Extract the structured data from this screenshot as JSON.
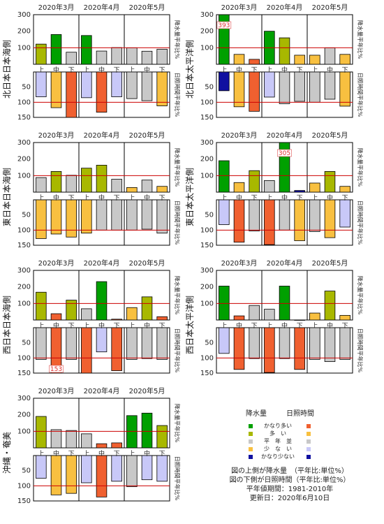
{
  "legend": {
    "precip_header": "降水量",
    "sun_header": "日照時間",
    "items": [
      {
        "label": "かなり多い",
        "precip_color": "#00a000",
        "sun_color": "#f06030"
      },
      {
        "label": "多　い",
        "precip_color": "#a8b800",
        "sun_color": "#f8c040"
      },
      {
        "label": "平　年　並",
        "precip_color": "#c8c8c8",
        "sun_color": "#c8c8c8"
      },
      {
        "label": "少　な　い",
        "precip_color": "#f8c040",
        "sun_color": "#c8c8f8"
      },
      {
        "label": "かなり少ない",
        "precip_color": "#1010a0",
        "sun_color": "#1010a0"
      }
    ]
  },
  "notes": {
    "line1": "図の上側が降水量　（平年比:単位%）",
    "line2": "図の下側が日照時間（平年比:単位%）",
    "line3": "平年値期間：1981-2010年",
    "line4": "更新日：2020年6月10日"
  },
  "chart_data": [
    {
      "type": "bar",
      "region": "北日本日本海側",
      "months": [
        "2020年3月",
        "2020年4月",
        "2020年5月"
      ],
      "categories": [
        "上",
        "中",
        "下",
        "上",
        "中",
        "下",
        "上",
        "中",
        "下"
      ],
      "precip_axis_label": "降水量平年比%",
      "sun_axis_label": "日照時間平年比%",
      "precip_ylim": [
        0,
        300
      ],
      "precip_ticks": [
        100,
        200,
        300
      ],
      "sun_ylim": [
        0,
        150
      ],
      "sun_ticks": [
        50,
        100,
        150
      ],
      "precip_values": [
        122,
        180,
        73,
        174,
        80,
        101,
        100,
        79,
        91
      ],
      "precip_colors": [
        "#a8b800",
        "#00a000",
        "#c8c8c8",
        "#00a000",
        "#c8c8c8",
        "#c8c8c8",
        "#c8c8c8",
        "#c8c8c8",
        "#c8c8c8"
      ],
      "sun_values": [
        82,
        118,
        150,
        85,
        133,
        82,
        88,
        95,
        112
      ],
      "sun_colors": [
        "#c8c8f8",
        "#f8c040",
        "#f06030",
        "#c8c8f8",
        "#f06030",
        "#c8c8f8",
        "#c8c8c8",
        "#c8c8c8",
        "#f8c040"
      ],
      "precip_labels": [
        null,
        null,
        null,
        null,
        null,
        null,
        null,
        null,
        null
      ],
      "sun_labels": [
        null,
        null,
        null,
        null,
        null,
        null,
        null,
        null,
        null
      ]
    },
    {
      "type": "bar",
      "region": "北日本太平洋側",
      "months": [
        "2020年3月",
        "2020年4月",
        "2020年5月"
      ],
      "categories": [
        "上",
        "中",
        "下",
        "上",
        "中",
        "下",
        "上",
        "中",
        "下"
      ],
      "precip_axis_label": "降水量平年比%",
      "sun_axis_label": "日照時間平年比%",
      "precip_ylim": [
        0,
        300
      ],
      "precip_ticks": [
        100,
        200,
        300
      ],
      "sun_ylim": [
        0,
        150
      ],
      "sun_ticks": [
        50,
        100,
        150
      ],
      "precip_values": [
        393,
        60,
        30,
        200,
        160,
        55,
        55,
        100,
        60
      ],
      "precip_colors": [
        "#00a000",
        "#f8c040",
        "#f06030",
        "#00a000",
        "#a8b800",
        "#f8c040",
        "#f8c040",
        "#c8c8c8",
        "#f8c040"
      ],
      "sun_values": [
        62,
        115,
        130,
        83,
        105,
        97,
        100,
        90,
        113
      ],
      "sun_colors": [
        "#1010a0",
        "#f8c040",
        "#f06030",
        "#c8c8f8",
        "#c8c8c8",
        "#c8c8c8",
        "#c8c8c8",
        "#c8c8c8",
        "#f8c040"
      ],
      "precip_labels": [
        "393",
        null,
        null,
        null,
        null,
        null,
        null,
        null,
        null
      ],
      "sun_labels": [
        null,
        null,
        null,
        null,
        null,
        null,
        null,
        null,
        null
      ]
    },
    {
      "type": "bar",
      "region": "東日本日本海側",
      "months": [
        "2020年3月",
        "2020年4月",
        "2020年5月"
      ],
      "categories": [
        "上",
        "中",
        "下",
        "上",
        "中",
        "下",
        "上",
        "中",
        "下"
      ],
      "precip_axis_label": "降水量平年比%",
      "sun_axis_label": "日照時間平年比%",
      "precip_ylim": [
        0,
        300
      ],
      "precip_ticks": [
        100,
        200,
        300
      ],
      "sun_ylim": [
        0,
        150
      ],
      "sun_ticks": [
        50,
        100,
        150
      ],
      "precip_values": [
        88,
        125,
        102,
        145,
        163,
        78,
        28,
        73,
        35
      ],
      "precip_colors": [
        "#c8c8c8",
        "#a8b800",
        "#c8c8c8",
        "#a8b800",
        "#a8b800",
        "#c8c8c8",
        "#f8c040",
        "#c8c8c8",
        "#f8c040"
      ],
      "sun_values": [
        128,
        113,
        123,
        110,
        100,
        100,
        100,
        97,
        110
      ],
      "sun_colors": [
        "#f8c040",
        "#f8c040",
        "#f8c040",
        "#f8c040",
        "#c8c8c8",
        "#c8c8c8",
        "#c8c8c8",
        "#c8c8c8",
        "#c8c8c8"
      ],
      "precip_labels": [
        null,
        null,
        null,
        null,
        null,
        null,
        null,
        null,
        null
      ],
      "sun_labels": [
        null,
        null,
        null,
        null,
        null,
        null,
        null,
        null,
        null
      ]
    },
    {
      "type": "bar",
      "region": "東日本太平洋側",
      "months": [
        "2020年3月",
        "2020年4月",
        "2020年5月"
      ],
      "categories": [
        "上",
        "中",
        "下",
        "上",
        "中",
        "下",
        "上",
        "中",
        "下"
      ],
      "precip_axis_label": "降水量平年比%",
      "sun_axis_label": "日照時間平年比%",
      "precip_ylim": [
        0,
        300
      ],
      "precip_ticks": [
        100,
        200,
        300
      ],
      "sun_ylim": [
        0,
        150
      ],
      "sun_ticks": [
        50,
        100,
        150
      ],
      "precip_values": [
        190,
        58,
        130,
        70,
        305,
        10,
        55,
        125,
        35
      ],
      "precip_colors": [
        "#00a000",
        "#f8c040",
        "#a8b800",
        "#c8c8c8",
        "#00a000",
        "#1010a0",
        "#f8c040",
        "#a8b800",
        "#f8c040"
      ],
      "sun_values": [
        82,
        140,
        103,
        148,
        100,
        135,
        105,
        125,
        90
      ],
      "sun_colors": [
        "#c8c8f8",
        "#f06030",
        "#c8c8c8",
        "#f06030",
        "#c8c8c8",
        "#f8c040",
        "#c8c8c8",
        "#f8c040",
        "#c8c8f8"
      ],
      "precip_labels": [
        null,
        null,
        null,
        null,
        "305",
        null,
        null,
        null,
        null
      ],
      "sun_labels": [
        null,
        null,
        null,
        null,
        null,
        null,
        null,
        null,
        null
      ]
    },
    {
      "type": "bar",
      "region": "西日本日本海側",
      "months": [
        "2020年3月",
        "2020年4月",
        "2020年5月"
      ],
      "categories": [
        "上",
        "中",
        "下",
        "上",
        "中",
        "下",
        "上",
        "中",
        "下"
      ],
      "precip_axis_label": "降水量平年比%",
      "sun_axis_label": "日照時間平年比%",
      "precip_ylim": [
        0,
        300
      ],
      "precip_ticks": [
        100,
        200,
        300
      ],
      "sun_ylim": [
        0,
        150
      ],
      "sun_ticks": [
        50,
        100,
        150
      ],
      "precip_values": [
        168,
        38,
        120,
        68,
        232,
        5,
        75,
        140,
        20
      ],
      "precip_colors": [
        "#a8b800",
        "#f06030",
        "#a8b800",
        "#c8c8c8",
        "#00a000",
        "#f06030",
        "#f8c040",
        "#a8b800",
        "#f06030"
      ],
      "sun_values": [
        105,
        153,
        105,
        150,
        80,
        142,
        105,
        102,
        105
      ],
      "sun_colors": [
        "#c8c8c8",
        "#f06030",
        "#c8c8c8",
        "#f06030",
        "#c8c8f8",
        "#f06030",
        "#c8c8c8",
        "#c8c8c8",
        "#c8c8c8"
      ],
      "precip_labels": [
        null,
        null,
        null,
        null,
        null,
        null,
        null,
        null,
        null
      ],
      "sun_labels": [
        null,
        "153",
        null,
        null,
        null,
        null,
        null,
        null,
        null
      ]
    },
    {
      "type": "bar",
      "region": "西日本太平洋側",
      "months": [
        "2020年3月",
        "2020年4月",
        "2020年5月"
      ],
      "categories": [
        "上",
        "中",
        "下",
        "上",
        "中",
        "下",
        "上",
        "中",
        "下"
      ],
      "precip_axis_label": "降水量平年比%",
      "sun_axis_label": "日照時間平年比%",
      "precip_ylim": [
        0,
        300
      ],
      "precip_ticks": [
        100,
        200,
        300
      ],
      "sun_ylim": [
        0,
        150
      ],
      "sun_ticks": [
        50,
        100,
        150
      ],
      "precip_values": [
        205,
        25,
        88,
        65,
        205,
        0,
        42,
        175,
        28
      ],
      "precip_colors": [
        "#00a000",
        "#f06030",
        "#c8c8c8",
        "#c8c8c8",
        "#00a000",
        "#1010a0",
        "#f8c040",
        "#a8b800",
        "#f8c040"
      ],
      "sun_values": [
        85,
        138,
        102,
        148,
        102,
        138,
        105,
        112,
        105
      ],
      "sun_colors": [
        "#c8c8f8",
        "#f06030",
        "#c8c8c8",
        "#f06030",
        "#c8c8c8",
        "#f06030",
        "#c8c8c8",
        "#c8c8c8",
        "#c8c8c8"
      ],
      "precip_labels": [
        null,
        null,
        null,
        null,
        null,
        null,
        null,
        null,
        null
      ],
      "sun_labels": [
        null,
        null,
        null,
        null,
        null,
        null,
        null,
        null,
        null
      ]
    },
    {
      "type": "bar",
      "region": "沖縄・奄美",
      "months": [
        "2020年3月",
        "2020年4月",
        "2020年5月"
      ],
      "categories": [
        "上",
        "中",
        "下",
        "上",
        "中",
        "下",
        "上",
        "中",
        "下"
      ],
      "precip_axis_label": "降水量平年比%",
      "sun_axis_label": "日照時間平年比%",
      "precip_ylim": [
        0,
        300
      ],
      "precip_ticks": [
        100,
        200,
        300
      ],
      "sun_ylim": [
        0,
        150
      ],
      "sun_ticks": [
        50,
        100,
        150
      ],
      "precip_values": [
        190,
        110,
        105,
        85,
        25,
        30,
        195,
        210,
        135
      ],
      "precip_colors": [
        "#a8b800",
        "#c8c8c8",
        "#c8c8c8",
        "#c8c8c8",
        "#f06030",
        "#f06030",
        "#00a000",
        "#00a000",
        "#a8b800"
      ],
      "sun_values": [
        75,
        130,
        125,
        90,
        137,
        85,
        103,
        80,
        85
      ],
      "sun_colors": [
        "#c8c8f8",
        "#f8c040",
        "#f8c040",
        "#c8c8f8",
        "#f06030",
        "#c8c8f8",
        "#c8c8c8",
        "#c8c8f8",
        "#c8c8f8"
      ],
      "precip_labels": [
        null,
        null,
        null,
        null,
        null,
        null,
        null,
        null,
        null
      ],
      "sun_labels": [
        null,
        null,
        null,
        null,
        null,
        null,
        null,
        null,
        null
      ]
    }
  ]
}
